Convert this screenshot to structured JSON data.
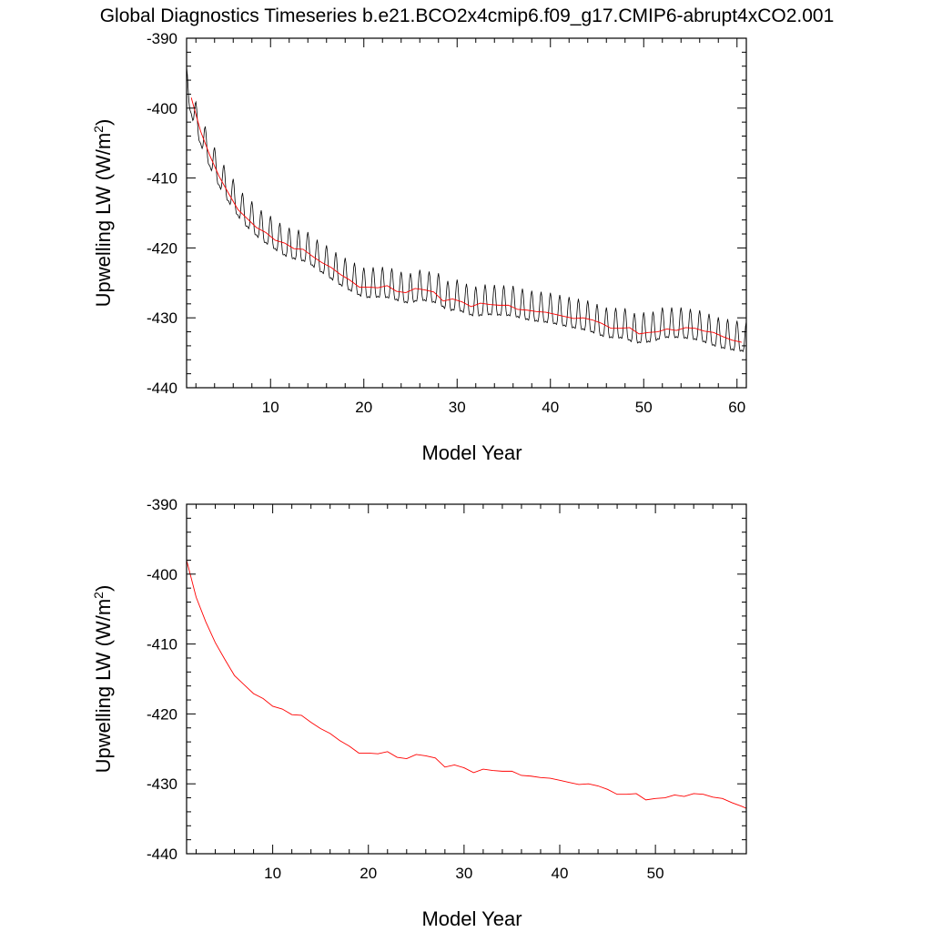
{
  "figure": {
    "title": "Global Diagnostics Timeseries b.e21.BCO2x4cmip6.f09_g17.CMIP6-abrupt4xCO2.001"
  },
  "chart_data": [
    {
      "type": "line",
      "xlabel": "Model Year",
      "ylabel": "Upwelling LW (W/m",
      "ylabel_superscript": "2",
      "ylabel_close": ")",
      "xlim": [
        1,
        61
      ],
      "ylim": [
        -440,
        -390
      ],
      "xticks": [
        10,
        20,
        30,
        40,
        50,
        60
      ],
      "yticks": [
        -390,
        -400,
        -410,
        -420,
        -430,
        -440
      ],
      "grid": false,
      "series": [
        {
          "kind": "monthly",
          "color": "#000000",
          "x_start": 1,
          "x_end": 61,
          "points_per_year": 12,
          "trend_keyframes": [
            [
              1,
              -397
            ],
            [
              2,
              -402
            ],
            [
              3,
              -405.5
            ],
            [
              4,
              -408.5
            ],
            [
              5,
              -411
            ],
            [
              6,
              -413
            ],
            [
              7,
              -415
            ],
            [
              8,
              -416.2
            ],
            [
              9,
              -417.5
            ],
            [
              10,
              -418.3
            ],
            [
              11,
              -419.3
            ],
            [
              12,
              -420
            ],
            [
              13,
              -420.3
            ],
            [
              14,
              -420.6
            ],
            [
              15,
              -421.7
            ],
            [
              16,
              -422.5
            ],
            [
              17,
              -423.5
            ],
            [
              18,
              -424.3
            ],
            [
              19,
              -425
            ],
            [
              20,
              -425.7
            ],
            [
              22,
              -425.6
            ],
            [
              23,
              -425.8
            ],
            [
              24,
              -426.3
            ],
            [
              25,
              -426.5
            ],
            [
              26,
              -426
            ],
            [
              28,
              -426.5
            ],
            [
              29,
              -427.6
            ],
            [
              30,
              -427.4
            ],
            [
              31,
              -428
            ],
            [
              32,
              -428.4
            ],
            [
              33,
              -428.1
            ],
            [
              36,
              -428.3
            ],
            [
              37,
              -428.7
            ],
            [
              38,
              -429
            ],
            [
              40,
              -429.3
            ],
            [
              42,
              -429.9
            ],
            [
              44,
              -430.4
            ],
            [
              46,
              -431.4
            ],
            [
              48,
              -431.5
            ],
            [
              49,
              -432.2
            ],
            [
              51,
              -432
            ],
            [
              52,
              -431.4
            ],
            [
              54,
              -431.4
            ],
            [
              56,
              -431.8
            ],
            [
              58,
              -432.8
            ],
            [
              60,
              -433.3
            ],
            [
              61,
              -433.4
            ]
          ],
          "seasonal_amplitude": 2.3
        },
        {
          "kind": "annual-mean",
          "color": "#ff0000",
          "x": [
            1.5,
            2.5,
            3.5,
            4.5,
            5.5,
            6.5,
            7.5,
            8.5,
            9.5,
            10.5,
            11.5,
            12.5,
            13.5,
            14.5,
            15.5,
            16.5,
            17.5,
            18.5,
            19.5,
            20.5,
            21.5,
            22.5,
            23.5,
            24.5,
            25.5,
            26.5,
            27.5,
            28.5,
            29.5,
            30.5,
            31.5,
            32.5,
            33.5,
            34.5,
            35.5,
            36.5,
            37.5,
            38.5,
            39.5,
            40.5,
            41.5,
            42.5,
            43.5,
            44.5,
            45.5,
            46.5,
            47.5,
            48.5,
            49.5,
            50.5,
            51.5,
            52.5,
            53.5,
            54.5,
            55.5,
            56.5,
            57.5,
            58.5,
            59.5,
            60.5
          ],
          "values": [
            -398.5,
            -403.3,
            -406.8,
            -409.8,
            -412.2,
            -414.5,
            -415.8,
            -417.1,
            -417.8,
            -418.9,
            -419.3,
            -420.1,
            -420.2,
            -421.2,
            -422.1,
            -422.8,
            -423.8,
            -424.6,
            -425.6,
            -425.6,
            -425.7,
            -425.4,
            -426.2,
            -426.4,
            -425.8,
            -426.0,
            -426.3,
            -427.6,
            -427.3,
            -427.7,
            -428.4,
            -427.9,
            -428.1,
            -428.2,
            -428.2,
            -428.8,
            -428.9,
            -429.1,
            -429.2,
            -429.5,
            -429.8,
            -430.1,
            -430.0,
            -430.3,
            -430.8,
            -431.5,
            -431.5,
            -431.4,
            -432.3,
            -432.1,
            -432.0,
            -431.6,
            -431.8,
            -431.4,
            -431.5,
            -431.9,
            -432.1,
            -432.7,
            -433.2,
            -433.5
          ]
        }
      ]
    },
    {
      "type": "line",
      "xlabel": "Model Year",
      "ylabel": "Upwelling LW (W/m",
      "ylabel_superscript": "2",
      "ylabel_close": ")",
      "xlim": [
        1,
        59.5
      ],
      "ylim": [
        -440,
        -390
      ],
      "xticks": [
        10,
        20,
        30,
        40,
        50
      ],
      "yticks": [
        -390,
        -400,
        -410,
        -420,
        -430,
        -440
      ],
      "grid": false,
      "series": [
        {
          "kind": "annual-mean",
          "color": "#ff0000",
          "x": [
            1,
            2,
            3,
            4,
            5,
            6,
            7,
            8,
            9,
            10,
            11,
            12,
            13,
            14,
            15,
            16,
            17,
            18,
            19,
            20,
            21,
            22,
            23,
            24,
            25,
            26,
            27,
            28,
            29,
            30,
            31,
            32,
            33,
            34,
            35,
            36,
            37,
            38,
            39,
            40,
            41,
            42,
            43,
            44,
            45,
            46,
            47,
            48,
            49,
            50,
            51,
            52,
            53,
            54,
            55,
            56,
            57,
            58,
            59,
            59.5
          ],
          "values": [
            -398.0,
            -403.3,
            -406.8,
            -409.8,
            -412.2,
            -414.5,
            -415.8,
            -417.1,
            -417.8,
            -418.9,
            -419.3,
            -420.1,
            -420.2,
            -421.2,
            -422.1,
            -422.8,
            -423.8,
            -424.6,
            -425.6,
            -425.6,
            -425.7,
            -425.4,
            -426.2,
            -426.4,
            -425.8,
            -426.0,
            -426.3,
            -427.6,
            -427.3,
            -427.7,
            -428.4,
            -427.9,
            -428.1,
            -428.2,
            -428.2,
            -428.8,
            -428.9,
            -429.1,
            -429.2,
            -429.5,
            -429.8,
            -430.1,
            -430.0,
            -430.3,
            -430.8,
            -431.5,
            -431.5,
            -431.4,
            -432.3,
            -432.1,
            -432.0,
            -431.6,
            -431.8,
            -431.4,
            -431.5,
            -431.9,
            -432.1,
            -432.7,
            -433.2,
            -433.5
          ]
        }
      ]
    }
  ]
}
